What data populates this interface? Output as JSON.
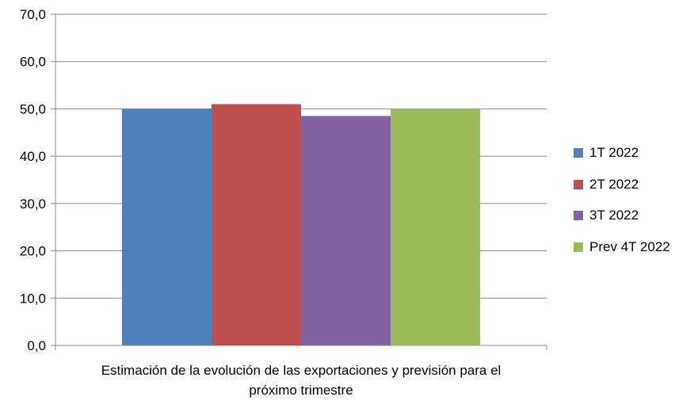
{
  "chart_data": {
    "type": "bar",
    "categories": [
      "Estimación de la evolución de las exportaciones y previsión para el próximo trimestre"
    ],
    "series": [
      {
        "name": "1T 2022",
        "values": [
          50.0
        ],
        "color": "#4f81bd"
      },
      {
        "name": "2T 2022",
        "values": [
          51.0
        ],
        "color": "#c0504d"
      },
      {
        "name": "3T 2022",
        "values": [
          48.5
        ],
        "color": "#8064a2"
      },
      {
        "name": "Prev 4T 2022",
        "values": [
          50.0
        ],
        "color": "#9bbb59"
      }
    ],
    "ylim": [
      0,
      70
    ],
    "yticks": [
      "0,0",
      "10,0",
      "20,0",
      "30,0",
      "40,0",
      "50,0",
      "60,0",
      "70,0"
    ],
    "grid": true,
    "legend": "right",
    "xlabel": "Estimación de la evolución de las exportaciones y previsión para el\npróximo trimestre",
    "ylabel": "",
    "title": ""
  }
}
